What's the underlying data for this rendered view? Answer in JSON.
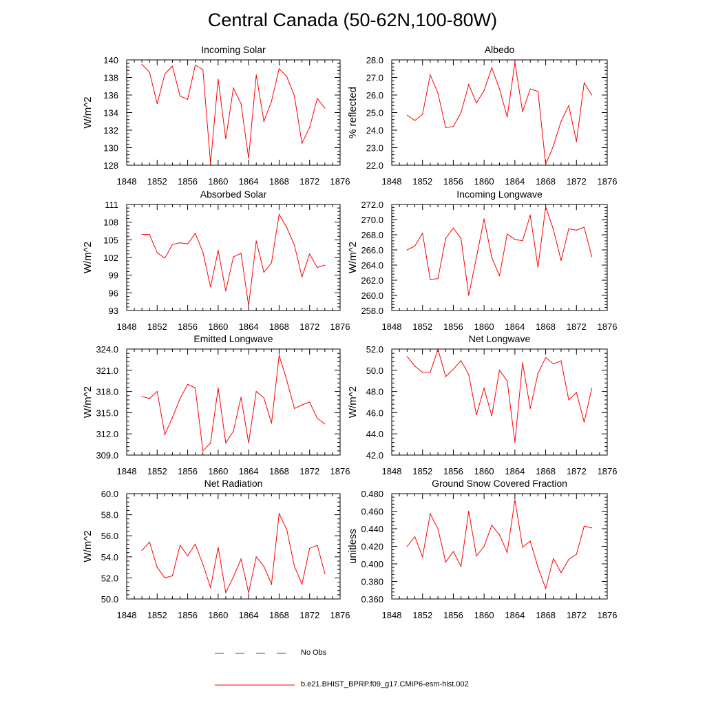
{
  "title": "Central Canada (50-62N,100-80W)",
  "legend": [
    {
      "label": "No Obs",
      "color": "#3b3bd6",
      "dash": true
    },
    {
      "label": "b.e21.BHIST_BPRP.f09_g17.CMIP6-esm-hist.002",
      "color": "#ff0000",
      "dash": false
    }
  ],
  "chart_data": [
    {
      "type": "line",
      "title": "Incoming Solar",
      "ylabel": "W/m^2",
      "xlim": [
        1848,
        1876
      ],
      "xticks": [
        1848,
        1852,
        1856,
        1860,
        1864,
        1868,
        1872,
        1876
      ],
      "ylim": [
        128,
        140
      ],
      "yticks": [
        "128",
        "130",
        "132",
        "134",
        "136",
        "138",
        "140"
      ],
      "series": [
        {
          "color": "#ff0000",
          "x": [
            1850,
            1851,
            1852,
            1853,
            1854,
            1855,
            1856,
            1857,
            1858,
            1859,
            1860,
            1861,
            1862,
            1863,
            1864,
            1865,
            1866,
            1867,
            1868,
            1869,
            1870,
            1871,
            1872,
            1873,
            1874
          ],
          "values": [
            139.5,
            138.6,
            135.0,
            138.4,
            139.3,
            135.9,
            135.5,
            139.4,
            138.9,
            128.2,
            137.8,
            131.0,
            136.8,
            135.0,
            128.8,
            138.3,
            133.0,
            135.3,
            139.0,
            138.1,
            135.9,
            130.5,
            132.3,
            135.6,
            134.5
          ]
        }
      ]
    },
    {
      "type": "line",
      "title": "Albedo",
      "ylabel": "% reflected",
      "xlim": [
        1848,
        1876
      ],
      "xticks": [
        1848,
        1852,
        1856,
        1860,
        1864,
        1868,
        1872,
        1876
      ],
      "ylim": [
        22.0,
        28.0
      ],
      "yticks": [
        "22.0",
        "23.0",
        "24.0",
        "25.0",
        "26.0",
        "27.0",
        "28.0"
      ],
      "series": [
        {
          "color": "#ff0000",
          "x": [
            1850,
            1851,
            1852,
            1853,
            1854,
            1855,
            1856,
            1857,
            1858,
            1859,
            1860,
            1861,
            1862,
            1863,
            1864,
            1865,
            1866,
            1867,
            1868,
            1869,
            1870,
            1871,
            1872,
            1873,
            1874
          ],
          "values": [
            24.85,
            24.55,
            24.9,
            27.15,
            26.1,
            24.15,
            24.2,
            25.0,
            26.6,
            25.55,
            26.25,
            27.55,
            26.35,
            24.75,
            27.85,
            25.05,
            26.35,
            26.2,
            22.05,
            23.1,
            24.5,
            25.4,
            23.35,
            26.7,
            26.0
          ]
        }
      ]
    },
    {
      "type": "line",
      "title": "Absorbed Solar",
      "ylabel": "W/m^2",
      "xlim": [
        1848,
        1876
      ],
      "xticks": [
        1848,
        1852,
        1856,
        1860,
        1864,
        1868,
        1872,
        1876
      ],
      "ylim": [
        93,
        111
      ],
      "yticks": [
        "93",
        "96",
        "99",
        "102",
        "105",
        "108",
        "111"
      ],
      "series": [
        {
          "color": "#ff0000",
          "x": [
            1850,
            1851,
            1852,
            1853,
            1854,
            1855,
            1856,
            1857,
            1858,
            1859,
            1860,
            1861,
            1862,
            1863,
            1864,
            1865,
            1866,
            1867,
            1868,
            1869,
            1870,
            1871,
            1872,
            1873,
            1874
          ],
          "values": [
            105.9,
            105.9,
            102.8,
            101.9,
            104.2,
            104.5,
            104.3,
            106.1,
            102.9,
            97.0,
            103.2,
            96.3,
            102.1,
            102.7,
            93.8,
            104.8,
            99.5,
            101.1,
            109.3,
            107.1,
            104.1,
            98.7,
            102.6,
            100.3,
            100.7
          ]
        }
      ]
    },
    {
      "type": "line",
      "title": "Incoming Longwave",
      "ylabel": "W/m^2",
      "xlim": [
        1848,
        1876
      ],
      "xticks": [
        1848,
        1852,
        1856,
        1860,
        1864,
        1868,
        1872,
        1876
      ],
      "ylim": [
        258.0,
        272.0
      ],
      "yticks": [
        "258.0",
        "260.0",
        "262.0",
        "264.0",
        "266.0",
        "268.0",
        "270.0",
        "272.0"
      ],
      "series": [
        {
          "color": "#ff0000",
          "x": [
            1850,
            1851,
            1852,
            1853,
            1854,
            1855,
            1856,
            1857,
            1858,
            1859,
            1860,
            1861,
            1862,
            1863,
            1864,
            1865,
            1866,
            1867,
            1868,
            1869,
            1870,
            1871,
            1872,
            1873,
            1874
          ],
          "values": [
            266.0,
            266.5,
            268.2,
            262.1,
            262.2,
            267.5,
            268.9,
            267.5,
            260.0,
            265.0,
            270.1,
            265.0,
            262.6,
            268.1,
            267.4,
            267.2,
            270.6,
            263.7,
            271.7,
            268.7,
            264.6,
            268.8,
            268.6,
            269.0,
            265.1
          ]
        }
      ]
    },
    {
      "type": "line",
      "title": "Emitted Longwave",
      "ylabel": "W/m^2",
      "xlim": [
        1848,
        1876
      ],
      "xticks": [
        1848,
        1852,
        1856,
        1860,
        1864,
        1868,
        1872,
        1876
      ],
      "ylim": [
        309.0,
        324.0
      ],
      "yticks": [
        "309.0",
        "312.0",
        "315.0",
        "318.0",
        "321.0",
        "324.0"
      ],
      "series": [
        {
          "color": "#ff0000",
          "x": [
            1850,
            1851,
            1852,
            1853,
            1854,
            1855,
            1856,
            1857,
            1858,
            1859,
            1860,
            1861,
            1862,
            1863,
            1864,
            1865,
            1866,
            1867,
            1868,
            1869,
            1870,
            1871,
            1872,
            1873,
            1874
          ],
          "values": [
            317.3,
            317.0,
            318.0,
            311.9,
            314.3,
            317.0,
            319.0,
            318.5,
            309.6,
            310.7,
            318.5,
            310.7,
            312.4,
            317.2,
            310.7,
            318.0,
            317.1,
            313.5,
            323.1,
            319.6,
            315.6,
            316.1,
            316.5,
            314.2,
            313.4
          ]
        }
      ]
    },
    {
      "type": "line",
      "title": "Net Longwave",
      "ylabel": "W/m^2",
      "xlim": [
        1848,
        1876
      ],
      "xticks": [
        1848,
        1852,
        1856,
        1860,
        1864,
        1868,
        1872,
        1876
      ],
      "ylim": [
        42.0,
        52.0
      ],
      "yticks": [
        "42.0",
        "44.0",
        "46.0",
        "48.0",
        "50.0",
        "52.0"
      ],
      "series": [
        {
          "color": "#ff0000",
          "x": [
            1850,
            1851,
            1852,
            1853,
            1854,
            1855,
            1856,
            1857,
            1858,
            1859,
            1860,
            1861,
            1862,
            1863,
            1864,
            1865,
            1866,
            1867,
            1868,
            1869,
            1870,
            1871,
            1872,
            1873,
            1874
          ],
          "values": [
            51.3,
            50.4,
            49.8,
            49.8,
            52.0,
            49.4,
            50.1,
            50.9,
            49.6,
            45.8,
            48.3,
            45.7,
            50.0,
            49.0,
            43.2,
            50.7,
            46.4,
            49.7,
            51.2,
            50.6,
            50.9,
            47.2,
            47.9,
            45.1,
            48.3
          ]
        }
      ]
    },
    {
      "type": "line",
      "title": "Net Radiation",
      "ylabel": "W/m^2",
      "xlim": [
        1848,
        1876
      ],
      "xticks": [
        1848,
        1852,
        1856,
        1860,
        1864,
        1868,
        1872,
        1876
      ],
      "ylim": [
        50.0,
        60.0
      ],
      "yticks": [
        "50.0",
        "52.0",
        "54.0",
        "56.0",
        "58.0",
        "60.0"
      ],
      "series": [
        {
          "color": "#ff0000",
          "x": [
            1850,
            1851,
            1852,
            1853,
            1854,
            1855,
            1856,
            1857,
            1858,
            1859,
            1860,
            1861,
            1862,
            1863,
            1864,
            1865,
            1866,
            1867,
            1868,
            1869,
            1870,
            1871,
            1872,
            1873,
            1874
          ],
          "values": [
            54.6,
            55.4,
            53.0,
            52.0,
            52.2,
            55.1,
            54.1,
            55.2,
            53.3,
            51.1,
            54.9,
            50.6,
            52.1,
            53.8,
            50.6,
            54.0,
            53.1,
            51.4,
            58.1,
            56.6,
            53.1,
            51.4,
            54.8,
            55.1,
            52.4
          ]
        }
      ]
    },
    {
      "type": "line",
      "title": "Ground Snow Covered Fraction",
      "ylabel": "unitless",
      "xlim": [
        1848,
        1876
      ],
      "xticks": [
        1848,
        1852,
        1856,
        1860,
        1864,
        1868,
        1872,
        1876
      ],
      "ylim": [
        0.36,
        0.48
      ],
      "yticks": [
        "0.360",
        "0.380",
        "0.400",
        "0.420",
        "0.440",
        "0.460",
        "0.480"
      ],
      "series": [
        {
          "color": "#ff0000",
          "x": [
            1850,
            1851,
            1852,
            1853,
            1854,
            1855,
            1856,
            1857,
            1858,
            1859,
            1860,
            1861,
            1862,
            1863,
            1864,
            1865,
            1866,
            1867,
            1868,
            1869,
            1870,
            1871,
            1872,
            1873,
            1874
          ],
          "values": [
            0.42,
            0.431,
            0.408,
            0.457,
            0.44,
            0.402,
            0.414,
            0.397,
            0.46,
            0.409,
            0.42,
            0.444,
            0.433,
            0.413,
            0.473,
            0.419,
            0.426,
            0.396,
            0.372,
            0.406,
            0.39,
            0.405,
            0.411,
            0.443,
            0.441
          ]
        }
      ]
    }
  ]
}
